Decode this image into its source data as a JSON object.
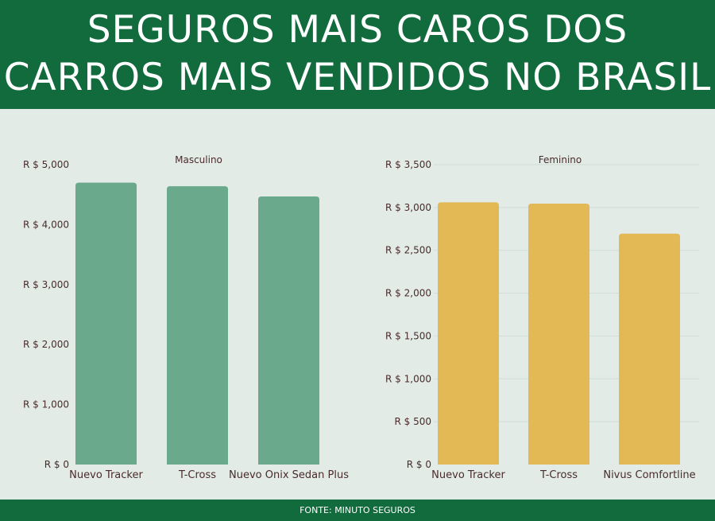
{
  "header": {
    "line1": "SEGUROS MAIS CAROS DOS",
    "line2": "CARROS MAIS VENDIDOS NO BRASIL"
  },
  "footer": {
    "source": "FONTE: MINUTO SEGUROS"
  },
  "colors": {
    "header": "#116b3c",
    "masculino": "#6aa98b",
    "feminino": "#e2b955"
  },
  "chart_data": [
    {
      "type": "bar",
      "title": "Masculino",
      "categories": [
        "Nuevo Tracker",
        "T-Cross",
        "Nuevo Onix Sedan Plus"
      ],
      "values": [
        4700,
        4640,
        4470
      ],
      "ylim": [
        0,
        5000
      ],
      "yticks": [
        0,
        1000,
        2000,
        3000,
        4000,
        5000
      ],
      "ytick_labels": [
        "R $ 0",
        "R $ 1,000",
        "R $ 2,000",
        "R $ 3,000",
        "R $ 4,000",
        "R $ 5,000"
      ],
      "grid": false,
      "color": "#6aa98b"
    },
    {
      "type": "bar",
      "title": "Feminino",
      "categories": [
        "Nuevo Tracker",
        "T-Cross",
        "Nivus Comfortline"
      ],
      "values": [
        3060,
        3045,
        2695
      ],
      "ylim": [
        0,
        3500
      ],
      "yticks": [
        0,
        500,
        1000,
        1500,
        2000,
        2500,
        3000,
        3500
      ],
      "ytick_labels": [
        "R $ 0",
        "R $ 500",
        "R $ 1,000",
        "R $ 1,500",
        "R $ 2,000",
        "R $ 2,500",
        "R $ 3,000",
        "R $ 3,500"
      ],
      "grid": true,
      "color": "#e2b955"
    }
  ]
}
